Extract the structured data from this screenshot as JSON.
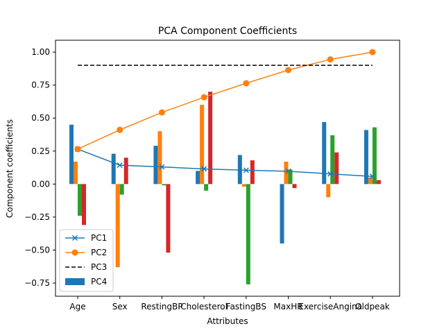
{
  "chart_data": {
    "type": "bar",
    "title": "PCA Component Coefficients",
    "xlabel": "Attributes",
    "ylabel": "Component coefficients",
    "categories": [
      "Age",
      "Sex",
      "RestingBP",
      "Cholesterol",
      "FastingBS",
      "MaxHR",
      "ExerciseAngina",
      "Oldpeak"
    ],
    "ylim": [
      -0.85,
      1.09
    ],
    "yticks": [
      -0.75,
      -0.5,
      -0.25,
      0.0,
      0.25,
      0.5,
      0.75,
      1.0
    ],
    "ytick_labels": [
      "−0.75",
      "−0.50",
      "−0.25",
      "0.00",
      "0.25",
      "0.50",
      "0.75",
      "1.00"
    ],
    "grid": false,
    "legend_position": "lower-left",
    "bar_series": [
      {
        "color": "#1f77b4",
        "values": [
          0.45,
          0.23,
          0.29,
          0.1,
          0.22,
          -0.45,
          0.47,
          0.41
        ]
      },
      {
        "color": "#ff7f0e",
        "values": [
          0.17,
          -0.63,
          0.4,
          0.6,
          -0.02,
          0.17,
          -0.1,
          0.05
        ]
      },
      {
        "color": "#2ca02c",
        "values": [
          -0.24,
          -0.08,
          -0.01,
          -0.05,
          -0.76,
          0.11,
          0.37,
          0.43
        ]
      },
      {
        "color": "#d62728",
        "values": [
          -0.31,
          0.2,
          -0.52,
          0.7,
          0.18,
          -0.03,
          0.24,
          0.03
        ]
      }
    ],
    "line_series": [
      {
        "name": "PC1",
        "color": "#1f77b4",
        "marker": "x",
        "values": [
          0.265,
          0.143,
          0.13,
          0.115,
          0.105,
          0.097,
          0.077,
          0.058
        ]
      },
      {
        "name": "PC2",
        "color": "#ff7f0e",
        "marker": "o",
        "values": [
          0.265,
          0.411,
          0.543,
          0.658,
          0.764,
          0.864,
          0.945,
          1.0
        ]
      },
      {
        "name": "PC3",
        "color": "#000000",
        "dashed": true,
        "values": [
          0.9,
          0.9,
          0.9,
          0.9,
          0.9,
          0.9,
          0.9,
          0.9
        ]
      }
    ],
    "legend": [
      {
        "label": "PC1",
        "kind": "line-x",
        "color": "#1f77b4"
      },
      {
        "label": "PC2",
        "kind": "line-o",
        "color": "#ff7f0e"
      },
      {
        "label": "PC3",
        "kind": "dashed",
        "color": "#000000"
      },
      {
        "label": "PC4",
        "kind": "patch",
        "color": "#1f77b4"
      }
    ]
  }
}
